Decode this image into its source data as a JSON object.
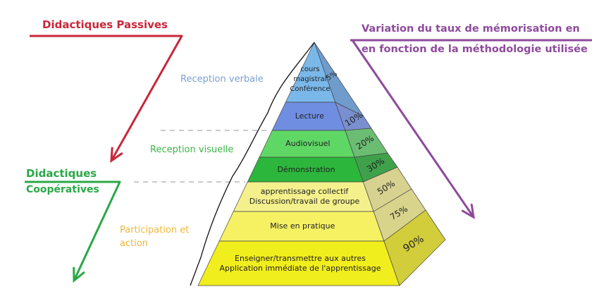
{
  "passive": {
    "label": "Didactiques Passives",
    "color": "#c8283a"
  },
  "cooperative": {
    "line1": "Didactiques",
    "line2": "Coopératives",
    "color": "#2aa847"
  },
  "variation": {
    "line1": "Variation du taux de mémorisation en",
    "line2": "en fonction de la méthodologie utilisée",
    "color": "#8e4a9c"
  },
  "groups": {
    "verbal": {
      "label": "Reception verbale",
      "color": "#7a9fd2"
    },
    "visual": {
      "label": "Reception visuelle",
      "color": "#3cb44a"
    },
    "participation": {
      "line1": "Participation et",
      "line2": "action",
      "color": "#efb73a"
    }
  },
  "tiers": [
    {
      "lines": [
        "cours",
        "magistral",
        "Conférence"
      ],
      "rate": "5%",
      "color": "#7ab8ea",
      "side": "#6f9ccc"
    },
    {
      "lines": [
        "Lecture"
      ],
      "rate": "10%",
      "color": "#6f8ee2",
      "side": "#7a8fcf"
    },
    {
      "lines": [
        "Audiovisuel"
      ],
      "rate": "20%",
      "color": "#5fd765",
      "side": "#6cbd74"
    },
    {
      "lines": [
        "Démonstration"
      ],
      "rate": "30%",
      "color": "#2cb63c",
      "side": "#3fa24b"
    },
    {
      "lines": [
        "apprentissage collectif",
        "Discussion/travail de groupe"
      ],
      "rate": "50%",
      "color": "#f4f18c",
      "side": "#d8d291"
    },
    {
      "lines": [
        "Mise en pratique"
      ],
      "rate": "75%",
      "color": "#f5f163",
      "side": "#d9d48c"
    },
    {
      "lines": [
        "Enseigner/transmettre aux autres",
        "Application immédiate de l'apprentissage"
      ],
      "rate": "90%",
      "color": "#f1ee1d",
      "side": "#d2cd3a"
    }
  ]
}
